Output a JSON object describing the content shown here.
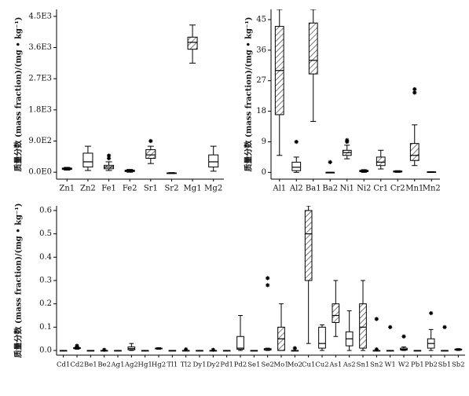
{
  "chart_data": [
    {
      "type": "box",
      "y_label": "质量分数 (mass fraction)/(mg • kg⁻¹)",
      "categories": [
        "Zn1",
        "Zn2",
        "Fe1",
        "Fe2",
        "Sr1",
        "Sr2",
        "Mg1",
        "Mg2"
      ],
      "hatched": [
        true,
        false,
        true,
        false,
        true,
        false,
        true,
        false
      ],
      "ylim": [
        -200,
        4700
      ],
      "yticks": [
        {
          "value": 0,
          "label": "0.0E0"
        },
        {
          "value": 900,
          "label": "9.0E2"
        },
        {
          "value": 1800,
          "label": "1.8E3"
        },
        {
          "value": 2700,
          "label": "2.7E3"
        },
        {
          "value": 3600,
          "label": "3.6E3"
        },
        {
          "value": 4500,
          "label": "4.5E3"
        }
      ],
      "boxes": [
        {
          "min": 60,
          "q1": 80,
          "median": 100,
          "q3": 120,
          "max": 140
        },
        {
          "min": 50,
          "q1": 150,
          "median": 300,
          "q3": 550,
          "max": 750
        },
        {
          "min": 50,
          "q1": 100,
          "median": 150,
          "q3": 200,
          "max": 300,
          "outliers": [
            400,
            480
          ]
        },
        {
          "min": 0,
          "q1": 20,
          "median": 40,
          "q3": 60,
          "max": 80
        },
        {
          "min": 250,
          "q1": 400,
          "median": 500,
          "q3": 650,
          "max": 750,
          "outliers": [
            900
          ]
        },
        {
          "min": -40,
          "q1": -30,
          "median": -25,
          "q3": -20,
          "max": -10
        },
        {
          "min": 3150,
          "q1": 3550,
          "median": 3750,
          "q3": 3900,
          "max": 4250
        },
        {
          "min": 30,
          "q1": 150,
          "median": 300,
          "q3": 500,
          "max": 750
        }
      ]
    },
    {
      "type": "box",
      "y_label": "质量分数 (mass fraction)/(mg • kg⁻¹)",
      "categories": [
        "Al1",
        "Al2",
        "Ba1",
        "Ba2",
        "Ni1",
        "Ni2",
        "Cr1",
        "Cr2",
        "Mn1",
        "Mn2"
      ],
      "hatched": [
        true,
        false,
        true,
        false,
        true,
        false,
        true,
        false,
        true,
        false
      ],
      "ylim": [
        -2,
        48
      ],
      "yticks": [
        0,
        9,
        18,
        27,
        36,
        45
      ],
      "boxes": [
        {
          "min": 5,
          "q1": 17,
          "median": 30,
          "q3": 43,
          "max": 48
        },
        {
          "min": 0,
          "q1": 0.5,
          "median": 1.5,
          "q3": 3,
          "max": 4.5,
          "outliers": [
            9
          ]
        },
        {
          "min": 15,
          "q1": 29,
          "median": 33,
          "q3": 44,
          "max": 48
        },
        {
          "min": 0,
          "q1": 0,
          "median": 0,
          "q3": 0,
          "max": 0,
          "outliers": [
            3
          ]
        },
        {
          "min": 4,
          "q1": 5,
          "median": 5.8,
          "q3": 6.5,
          "max": 8,
          "outliers": [
            9,
            9.5
          ]
        },
        {
          "min": 0,
          "q1": 0.2,
          "median": 0.4,
          "q3": 0.6,
          "max": 0.8
        },
        {
          "min": 1,
          "q1": 2,
          "median": 3,
          "q3": 4.5,
          "max": 6.5
        },
        {
          "min": 0,
          "q1": 0.1,
          "median": 0.2,
          "q3": 0.4,
          "max": 0.5
        },
        {
          "min": 2,
          "q1": 3.5,
          "median": 5,
          "q3": 8.5,
          "max": 14,
          "outliers": [
            23.5,
            24.5
          ]
        },
        {
          "min": 0,
          "q1": 0.05,
          "median": 0.1,
          "q3": 0.15,
          "max": 0.2
        }
      ]
    },
    {
      "type": "box",
      "y_label": "质量分数 (mass fraction)/(mg • kg⁻¹)",
      "categories": [
        "Cd1",
        "Cd2",
        "Be1",
        "Be2",
        "Ag1",
        "Ag2",
        "Hg1",
        "Hg2",
        "Tl1",
        "Tl2",
        "Dy1",
        "Dy2",
        "Pd1",
        "Pd2",
        "Se1",
        "Se2",
        "Mo1",
        "Mo2",
        "Cu1",
        "Cu2",
        "As1",
        "As2",
        "Sn1",
        "Sn2",
        "W1",
        "W2",
        "Pb1",
        "Pb2",
        "Sb1",
        "Sb2"
      ],
      "hatched": [
        true,
        false,
        true,
        false,
        true,
        false,
        true,
        false,
        true,
        false,
        true,
        false,
        true,
        false,
        true,
        false,
        true,
        false,
        true,
        false,
        true,
        false,
        true,
        false,
        true,
        false,
        true,
        false,
        true,
        false
      ],
      "ylim": [
        -0.02,
        0.62
      ],
      "yticks": [
        {
          "value": 0,
          "label": "0.0"
        },
        0.1,
        0.2,
        0.3,
        0.4,
        0.5,
        0.6
      ],
      "boxes": [
        {
          "min": 0,
          "q1": 0,
          "median": 0,
          "q3": 0,
          "max": 0
        },
        {
          "min": 0.005,
          "q1": 0.008,
          "median": 0.01,
          "q3": 0.012,
          "max": 0.015,
          "outliers": [
            0.02
          ]
        },
        {
          "min": 0,
          "q1": 0,
          "median": 0,
          "q3": 0,
          "max": 0
        },
        {
          "min": 0,
          "q1": 0,
          "median": 0,
          "q3": 0,
          "max": 0,
          "outliers": [
            0.003
          ]
        },
        {
          "min": 0,
          "q1": 0,
          "median": 0,
          "q3": 0,
          "max": 0
        },
        {
          "min": 0,
          "q1": 0.003,
          "median": 0.008,
          "q3": 0.015,
          "max": 0.03
        },
        {
          "min": 0,
          "q1": 0,
          "median": 0,
          "q3": 0,
          "max": 0
        },
        {
          "min": 0.005,
          "q1": 0.007,
          "median": 0.008,
          "q3": 0.01,
          "max": 0.012
        },
        {
          "min": 0,
          "q1": 0,
          "median": 0,
          "q3": 0,
          "max": 0
        },
        {
          "min": 0,
          "q1": 0,
          "median": 0,
          "q3": 0,
          "max": 0,
          "outliers": [
            0.005
          ]
        },
        {
          "min": 0,
          "q1": 0,
          "median": 0,
          "q3": 0,
          "max": 0
        },
        {
          "min": 0,
          "q1": 0,
          "median": 0,
          "q3": 0,
          "max": 0,
          "outliers": [
            0.003
          ]
        },
        {
          "min": 0,
          "q1": 0,
          "median": 0,
          "q3": 0,
          "max": 0
        },
        {
          "min": 0,
          "q1": 0.005,
          "median": 0.01,
          "q3": 0.06,
          "max": 0.15
        },
        {
          "min": 0,
          "q1": 0,
          "median": 0,
          "q3": 0,
          "max": 0
        },
        {
          "min": 0,
          "q1": 0.002,
          "median": 0.004,
          "q3": 0.008,
          "max": 0.01,
          "outliers": [
            0.28,
            0.31
          ]
        },
        {
          "min": 0,
          "q1": 0,
          "median": 0.05,
          "q3": 0.1,
          "max": 0.2
        },
        {
          "min": 0,
          "q1": 0,
          "median": 0,
          "q3": 0,
          "max": 0,
          "outliers": [
            0.01
          ]
        },
        {
          "min": 0.03,
          "q1": 0.3,
          "median": 0.5,
          "q3": 0.6,
          "max": 0.62
        },
        {
          "min": 0,
          "q1": 0.01,
          "median": 0.03,
          "q3": 0.1,
          "max": 0.11
        },
        {
          "min": 0.06,
          "q1": 0.12,
          "median": 0.15,
          "q3": 0.2,
          "max": 0.3
        },
        {
          "min": 0,
          "q1": 0.02,
          "median": 0.05,
          "q3": 0.08,
          "max": 0.17
        },
        {
          "min": 0,
          "q1": 0.01,
          "median": 0.1,
          "q3": 0.2,
          "max": 0.3
        },
        {
          "min": 0,
          "q1": 0,
          "median": 0,
          "q3": 0,
          "max": 0,
          "outliers": [
            0.005,
            0.135
          ]
        },
        {
          "min": 0,
          "q1": 0,
          "median": 0,
          "q3": 0,
          "max": 0,
          "outliers": [
            0.1
          ]
        },
        {
          "min": 0,
          "q1": 0.002,
          "median": 0.005,
          "q3": 0.01,
          "max": 0.015,
          "outliers": [
            0.06
          ]
        },
        {
          "min": 0,
          "q1": 0,
          "median": 0,
          "q3": 0,
          "max": 0
        },
        {
          "min": 0,
          "q1": 0.01,
          "median": 0.03,
          "q3": 0.05,
          "max": 0.09,
          "outliers": [
            0.16
          ]
        },
        {
          "min": 0,
          "q1": 0,
          "median": 0,
          "q3": 0,
          "max": 0,
          "outliers": [
            0.1
          ]
        },
        {
          "min": 0,
          "q1": 0.002,
          "median": 0.004,
          "q3": 0.006,
          "max": 0.008
        }
      ]
    }
  ]
}
